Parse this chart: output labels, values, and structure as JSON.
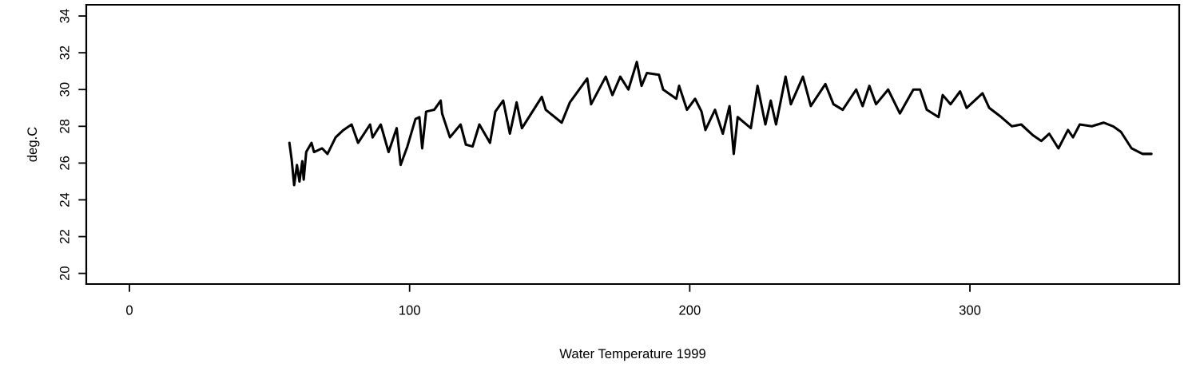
{
  "chart_data": {
    "type": "line",
    "xlabel": "Water Temperature 1999",
    "ylabel": "deg.C",
    "xlim": [
      -15.4,
      374.7
    ],
    "xticks": [
      0,
      100,
      200,
      300
    ],
    "ylim": [
      19.42,
      34.61
    ],
    "yticks": [
      20,
      22,
      24,
      26,
      28,
      30,
      32,
      34
    ],
    "grid": false,
    "marker": "none",
    "line_style": "solid",
    "series": [
      {
        "color": "#000000",
        "x": [
          57.1,
          57.9,
          58.8,
          59.8,
          60.7,
          61.7,
          62.2,
          63.1,
          65,
          65.9,
          68.8,
          70.7,
          73.6,
          76.4,
          79.3,
          81.6,
          85.9,
          86.8,
          89.7,
          92.5,
          95.4,
          96.8,
          99.2,
          102.1,
          103.5,
          104.5,
          105.9,
          108.8,
          111.1,
          111.6,
          114.4,
          118.2,
          120.1,
          122.5,
          124.9,
          128.7,
          130.6,
          133.4,
          135.8,
          138.2,
          140.1,
          147.2,
          148.6,
          154.3,
          157.2,
          163.4,
          164.8,
          170,
          172.4,
          175.2,
          178.1,
          181.1,
          182.8,
          184.7,
          189,
          190.5,
          195.2,
          196.2,
          199,
          201.9,
          204.2,
          205.6,
          209,
          211.8,
          214.2,
          215.7,
          217.1,
          221.8,
          224.2,
          227,
          228.9,
          230.8,
          234.2,
          236.1,
          240.4,
          243.2,
          248.4,
          251.3,
          254.6,
          259.4,
          261.7,
          264.1,
          266.5,
          270.8,
          275,
          279.8,
          282.2,
          284.6,
          288.8,
          290.3,
          293.1,
          296.5,
          298.8,
          304.5,
          306.9,
          311.2,
          315,
          318.3,
          322.6,
          325.5,
          328.3,
          331.6,
          335,
          336.8,
          339.2,
          343.5,
          347.7,
          351.1,
          353.9,
          357.7,
          361.6,
          364.8
        ],
        "values": [
          27.1,
          26.2,
          24.8,
          25.9,
          25.0,
          26.1,
          25.1,
          26.6,
          27.1,
          26.6,
          26.8,
          26.5,
          27.4,
          27.8,
          28.1,
          27.1,
          28.1,
          27.4,
          28.1,
          26.6,
          27.9,
          25.9,
          26.9,
          28.4,
          28.5,
          26.8,
          28.8,
          28.9,
          29.4,
          28.7,
          27.4,
          28.1,
          27.0,
          26.9,
          28.1,
          27.1,
          28.8,
          29.4,
          27.6,
          29.3,
          27.9,
          29.6,
          28.9,
          28.2,
          29.3,
          30.6,
          29.2,
          30.7,
          29.7,
          30.7,
          30.0,
          31.5,
          30.2,
          30.9,
          30.8,
          30.0,
          29.5,
          30.2,
          28.9,
          29.5,
          28.8,
          27.8,
          28.9,
          27.6,
          29.1,
          26.5,
          28.5,
          27.9,
          30.2,
          28.1,
          29.4,
          28.1,
          30.7,
          29.2,
          30.7,
          29.1,
          30.3,
          29.2,
          28.9,
          30.0,
          29.1,
          30.2,
          29.2,
          30.0,
          28.7,
          30.0,
          30.0,
          28.9,
          28.5,
          29.7,
          29.2,
          29.9,
          29.0,
          29.8,
          29.0,
          28.5,
          28.0,
          28.1,
          27.5,
          27.2,
          27.6,
          26.8,
          27.8,
          27.4,
          28.1,
          28.0,
          28.2,
          28.0,
          27.7,
          26.8,
          26.5,
          26.5
        ]
      }
    ]
  }
}
